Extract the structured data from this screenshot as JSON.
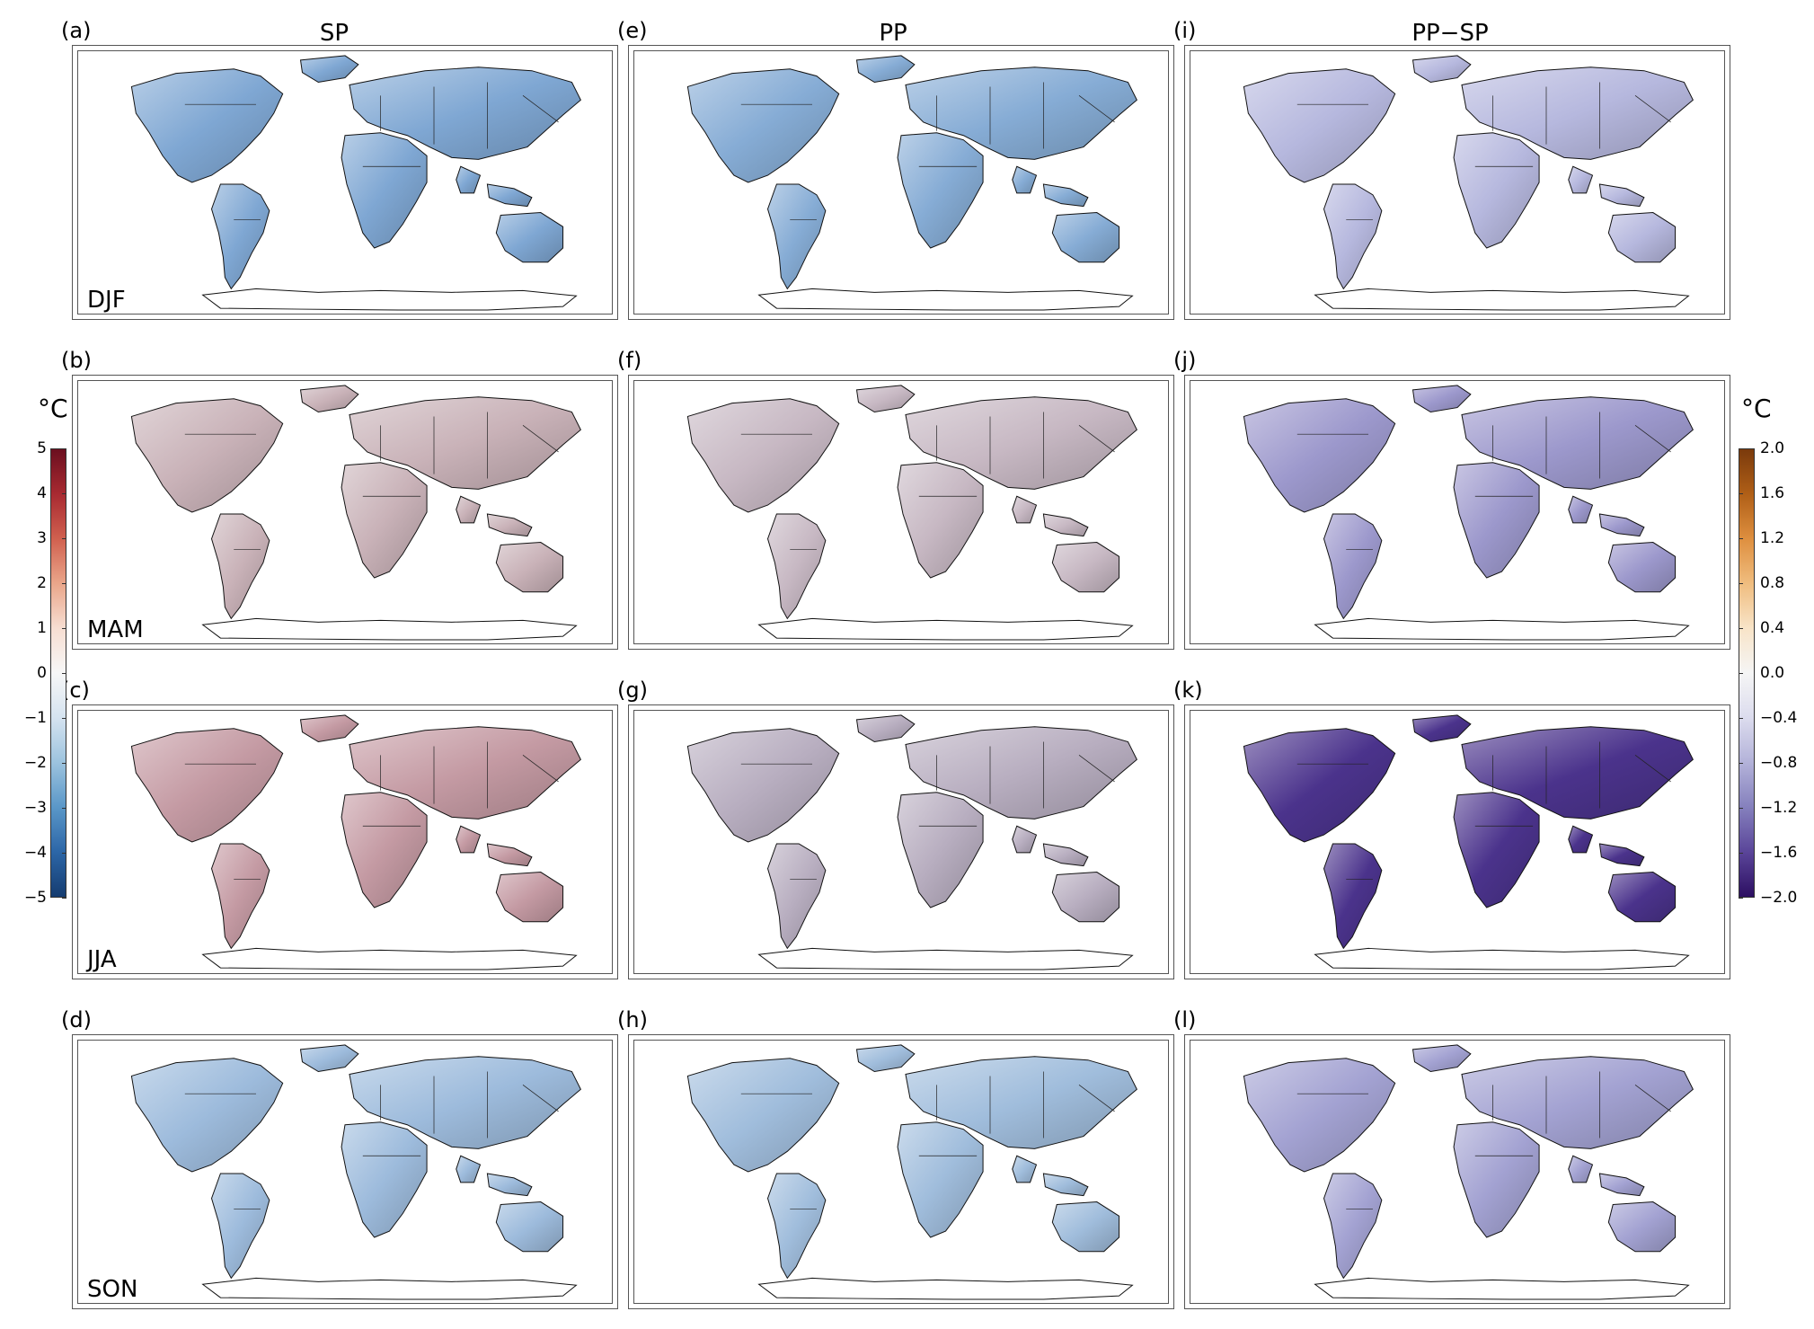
{
  "columns": [
    {
      "title": "SP"
    },
    {
      "title": "PP"
    },
    {
      "title": "PP−SP"
    }
  ],
  "seasons": [
    "DJF",
    "MAM",
    "JJA",
    "SON"
  ],
  "panel_letters": [
    [
      "(a)",
      "(e)",
      "(i)"
    ],
    [
      "(b)",
      "(f)",
      "(j)"
    ],
    [
      "(c)",
      "(g)",
      "(k)"
    ],
    [
      "(d)",
      "(h)",
      "(l)"
    ]
  ],
  "colorbar_left": {
    "unit": "°C",
    "ticks": [
      "5",
      "4",
      "3",
      "2",
      "1",
      "0",
      "−1",
      "−2",
      "−3",
      "−4",
      "−5"
    ],
    "colors": [
      "#6b0f1f",
      "#a82a31",
      "#d0604f",
      "#eaa68a",
      "#f7ded2",
      "#f7f7f7",
      "#d5e3f0",
      "#9cc3de",
      "#5a97c8",
      "#2c66a7",
      "#153c70"
    ],
    "range": [
      -5,
      5
    ]
  },
  "colorbar_right": {
    "unit": "°C",
    "ticks": [
      "2.0",
      "1.6",
      "1.2",
      "0.8",
      "0.4",
      "0.0",
      "−0.4",
      "−0.8",
      "−1.2",
      "−1.6",
      "−2.0"
    ],
    "colors": [
      "#7a3a0c",
      "#b05f17",
      "#de8f3f",
      "#f0bd7f",
      "#f8e4c8",
      "#f5f5f5",
      "#dcdcee",
      "#b3b2d9",
      "#8580bd",
      "#5a4599",
      "#2d0f62"
    ],
    "range": [
      -2.0,
      2.0
    ]
  },
  "panel_tints": [
    [
      "#7fa7d3",
      "#86acd5",
      "#b6b8de"
    ],
    [
      "#c9b2b8",
      "#c7b8c3",
      "#9c98cc"
    ],
    [
      "#c49aa3",
      "#b8aec0",
      "#4b338c"
    ],
    [
      "#9dbbdc",
      "#a0bddc",
      "#a3a2d2"
    ]
  ]
}
